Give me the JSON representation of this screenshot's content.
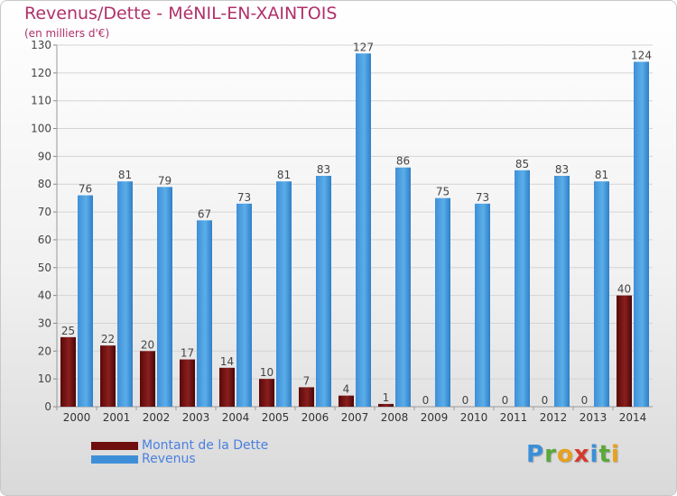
{
  "title": "Revenus/Dette - MéNIL-EN-XAINTOIS",
  "subtitle": "(en milliers d'€)",
  "colors": {
    "dette": "#6e0e0e",
    "revenus": "#3d8fd8",
    "title": "#b0306a",
    "legend_text": "#4a7fe0"
  },
  "legend": [
    {
      "label": "Montant de la Dette",
      "color": "#6e0e0e"
    },
    {
      "label": "Revenus",
      "color": "#3d8fd8"
    }
  ],
  "logo": {
    "text": "Proxiti",
    "letters": [
      {
        "ch": "P",
        "color": "#3a8fd9"
      },
      {
        "ch": "r",
        "color": "#5aa83a"
      },
      {
        "ch": "o",
        "color": "#e8a11c"
      },
      {
        "ch": "x",
        "color": "#d63a2f"
      },
      {
        "ch": "i",
        "color": "#3a8fd9"
      },
      {
        "ch": "t",
        "color": "#5aa83a"
      },
      {
        "ch": "i",
        "color": "#e8a11c"
      }
    ]
  },
  "chart_data": {
    "type": "bar",
    "title": "Revenus/Dette - MéNIL-EN-XAINTOIS",
    "subtitle": "(en milliers d'€)",
    "categories": [
      "2000",
      "2001",
      "2002",
      "2003",
      "2004",
      "2005",
      "2006",
      "2007",
      "2008",
      "2009",
      "2010",
      "2011",
      "2012",
      "2013",
      "2014"
    ],
    "series": [
      {
        "name": "Montant de la Dette",
        "values": [
          25,
          22,
          20,
          17,
          14,
          10,
          7,
          4,
          1,
          0,
          0,
          0,
          0,
          0,
          40
        ]
      },
      {
        "name": "Revenus",
        "values": [
          76,
          81,
          79,
          67,
          73,
          81,
          83,
          127,
          86,
          75,
          73,
          85,
          83,
          81,
          124
        ]
      }
    ],
    "ylim": [
      0,
      130
    ],
    "yticks": [
      0,
      10,
      20,
      30,
      40,
      50,
      60,
      70,
      80,
      90,
      100,
      110,
      120,
      130
    ],
    "grid": true,
    "legend_position": "bottom-left",
    "data_labels": true
  }
}
